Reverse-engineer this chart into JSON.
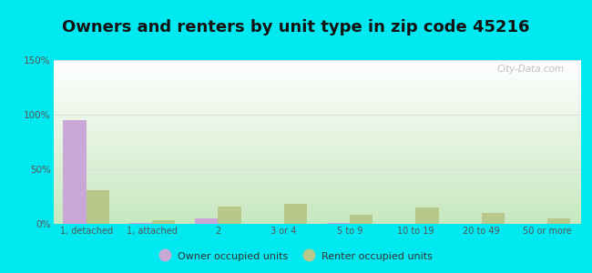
{
  "title": "Owners and renters by unit type in zip code 45216",
  "categories": [
    "1, detached",
    "1, attached",
    "2",
    "3 or 4",
    "5 to 9",
    "10 to 19",
    "20 to 49",
    "50 or more"
  ],
  "owner_values": [
    95,
    1,
    5,
    0,
    1,
    0,
    0,
    0
  ],
  "renter_values": [
    31,
    3,
    16,
    18,
    8,
    15,
    10,
    5
  ],
  "owner_color": "#c9a8d8",
  "renter_color": "#b8c88a",
  "background_outer": "#00e8f0",
  "background_inner_top_left": "#ffffff",
  "background_inner_bottom_right": "#c8e8c0",
  "title_fontsize": 13,
  "ylabel_ticks": [
    "0%",
    "50%",
    "100%",
    "150%"
  ],
  "ytick_values": [
    0,
    50,
    100,
    150
  ],
  "ylim": [
    0,
    150
  ],
  "legend_owner": "Owner occupied units",
  "legend_renter": "Renter occupied units",
  "bar_width": 0.35,
  "watermark": "City-Data.com",
  "grid_color": "#dddddd",
  "tick_color": "#555555"
}
